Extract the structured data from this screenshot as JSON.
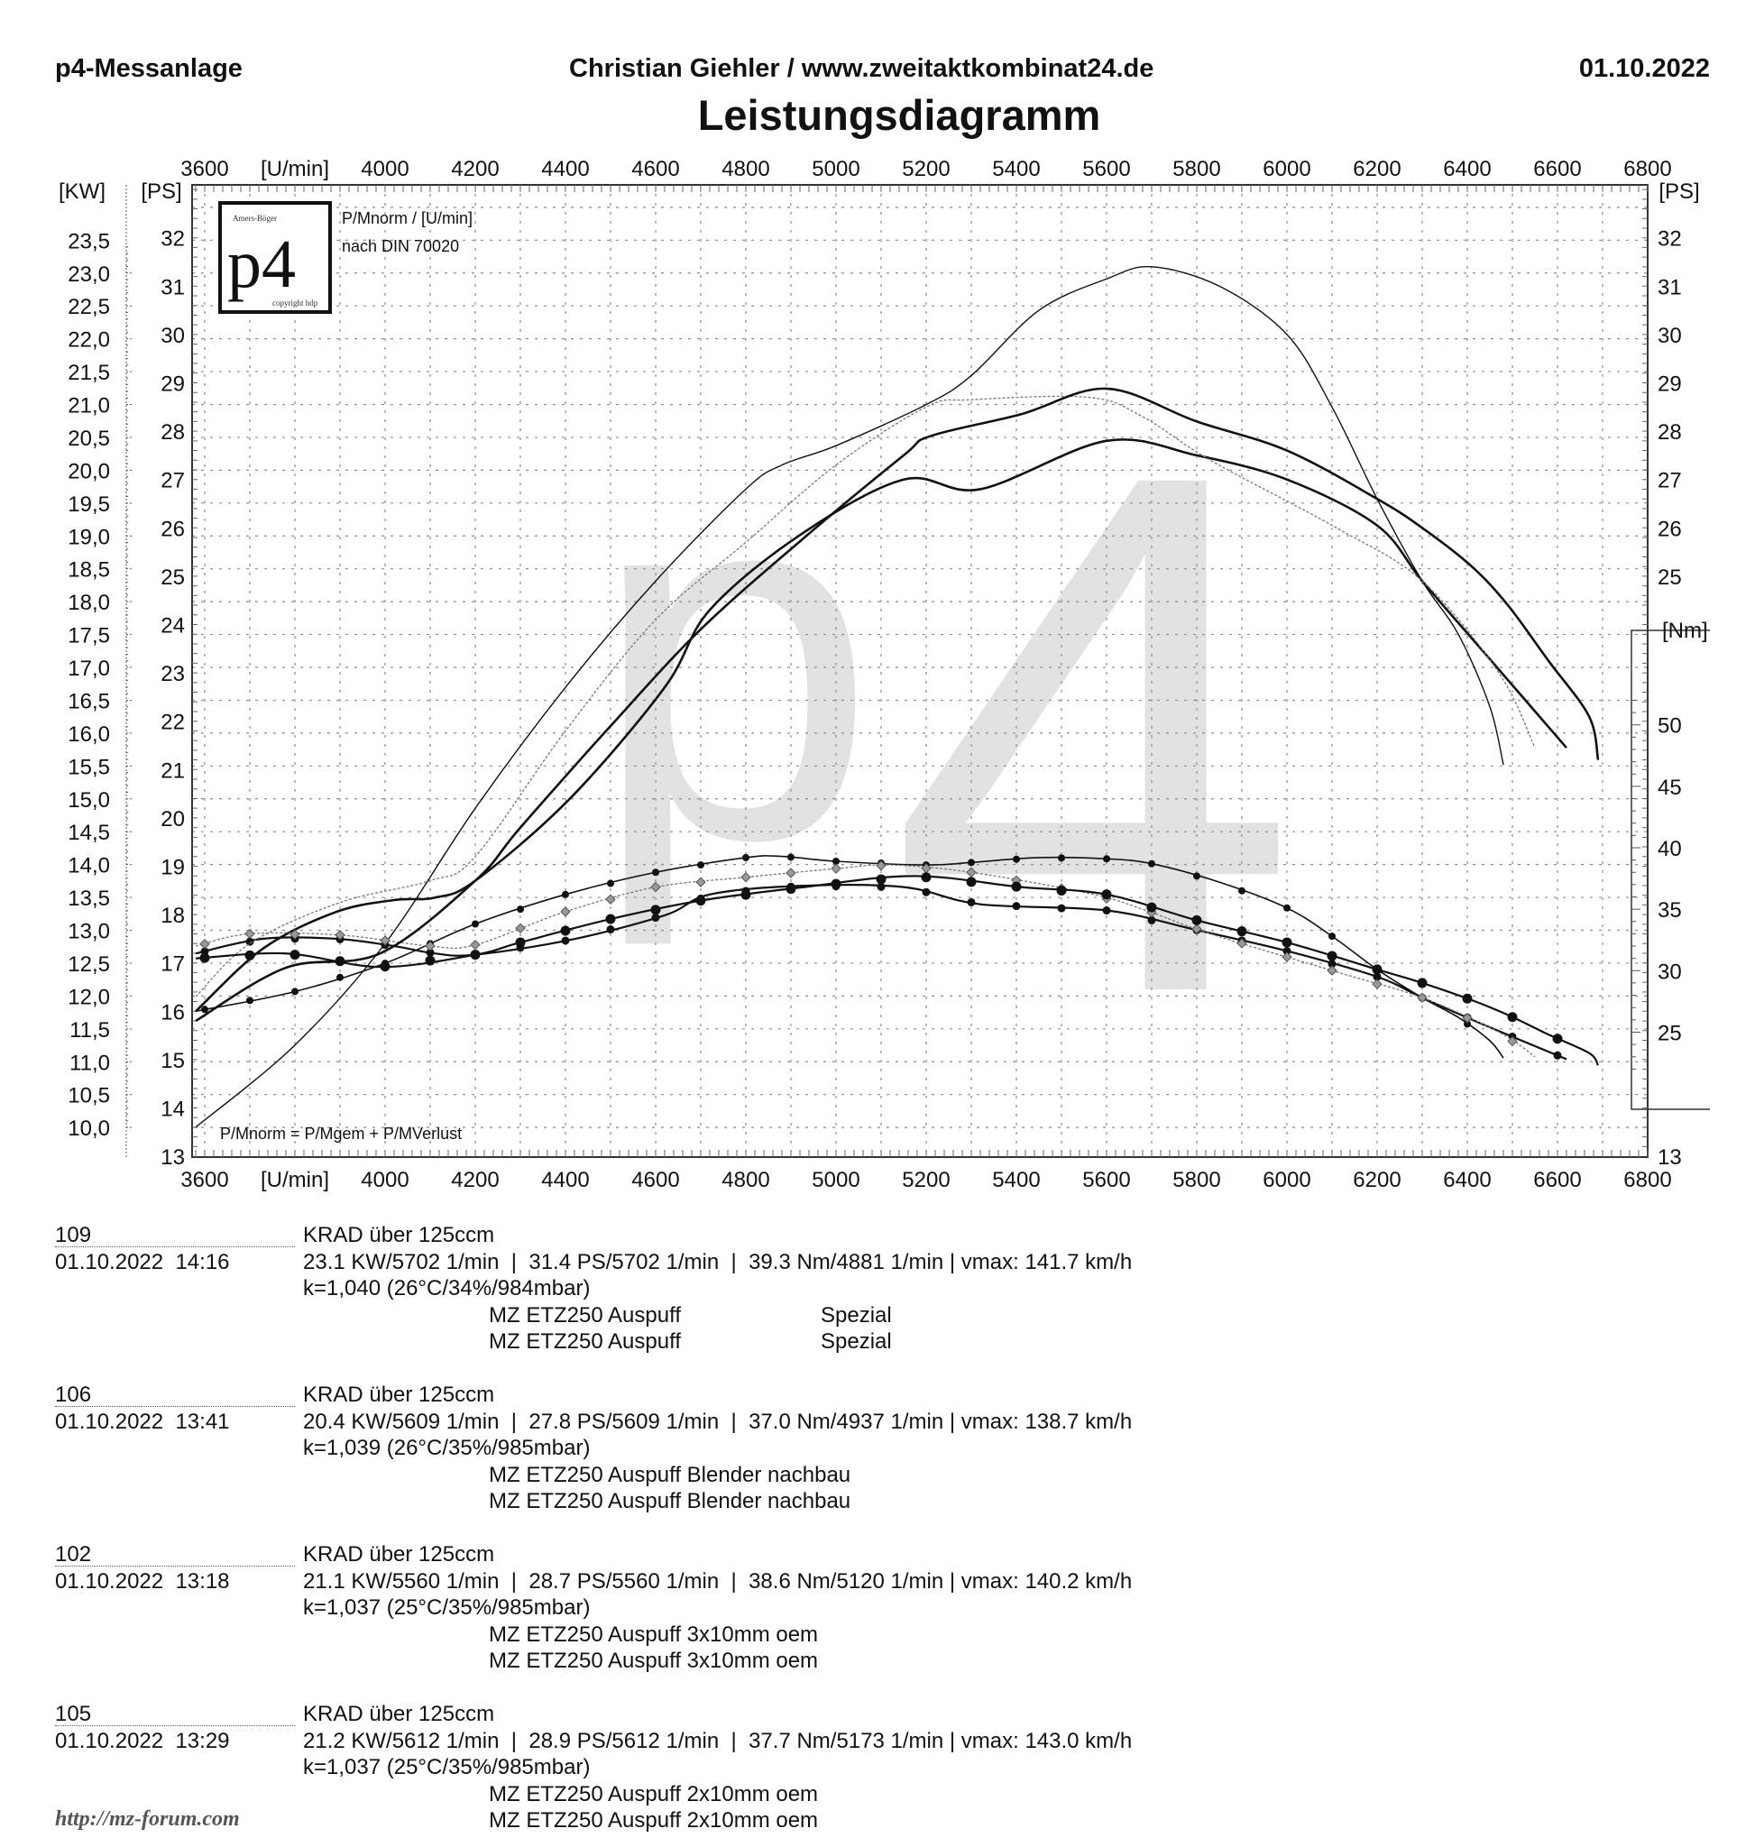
{
  "header": {
    "left": "p4-Messanlage",
    "center": "Christian Giehler / www.zweitaktkombinat24.de",
    "right": "01.10.2022",
    "title": "Leistungsdiagramm"
  },
  "logo": {
    "text": "p4",
    "top_text": "Amers-Böger",
    "bottom_text": "copyright hdp"
  },
  "watermark": "p4",
  "notes": {
    "unit_note": "P/Mnorm / [U/min]",
    "norm_note": "nach DIN 70020",
    "formula": "P/Mnorm = P/Mgem + P/MVerlust"
  },
  "chart_data": {
    "type": "line",
    "title": "Leistungsdiagramm",
    "xlabel": "[U/min]",
    "ylabel_left_kw": "[KW]",
    "ylabel_left_ps": "[PS]",
    "ylabel_right_ps": "[PS]",
    "ylabel_right_nm": "[Nm]",
    "xlim": [
      3572,
      6800
    ],
    "ylim_ps": [
      13,
      33.1
    ],
    "grid": true,
    "x_ticks": [
      3600,
      3800,
      4000,
      4200,
      4400,
      4600,
      4800,
      5000,
      5200,
      5400,
      5600,
      5800,
      6000,
      6200,
      6400,
      6600,
      6800
    ],
    "x_tick_labels": [
      "3600",
      "[U/min]",
      "4000",
      "4200",
      "4400",
      "4600",
      "4800",
      "5000",
      "5200",
      "5400",
      "5600",
      "5800",
      "6000",
      "6200",
      "6400",
      "6600",
      "6800"
    ],
    "ps_ticks": [
      "13",
      "14",
      "15",
      "16",
      "17",
      "18",
      "19",
      "20",
      "21",
      "22",
      "23",
      "24",
      "25",
      "26",
      "27",
      "28",
      "29",
      "30",
      "31",
      "32"
    ],
    "kw_ticks": [
      "10,0",
      "10,5",
      "11,0",
      "11,5",
      "12,0",
      "12,5",
      "13,0",
      "13,5",
      "14,0",
      "14,5",
      "15,0",
      "15,5",
      "16,0",
      "16,5",
      "17,0",
      "17,5",
      "18,0",
      "18,5",
      "19,0",
      "19,5",
      "20,0",
      "20,5",
      "21,0",
      "21,5",
      "22,0",
      "22,5",
      "23,0",
      "23,5"
    ],
    "nm_ticks": [
      "25",
      "30",
      "35",
      "40",
      "45",
      "50"
    ],
    "series": [
      {
        "name": "109",
        "line": "thin-solid",
        "marker": "small-dot",
        "color": "#111111",
        "power_ps": [
          [
            3580,
            13.6
          ],
          [
            3800,
            15.3
          ],
          [
            4000,
            17.4
          ],
          [
            4200,
            20.2
          ],
          [
            4400,
            22.7
          ],
          [
            4600,
            24.9
          ],
          [
            4800,
            26.8
          ],
          [
            4880,
            27.3
          ],
          [
            5000,
            27.7
          ],
          [
            5200,
            28.55
          ],
          [
            5300,
            29.15
          ],
          [
            5450,
            30.5
          ],
          [
            5600,
            31.15
          ],
          [
            5700,
            31.4
          ],
          [
            5850,
            31.0
          ],
          [
            6000,
            30.0
          ],
          [
            6100,
            28.5
          ],
          [
            6200,
            26.6
          ],
          [
            6300,
            24.9
          ],
          [
            6380,
            23.8
          ],
          [
            6450,
            22.3
          ],
          [
            6480,
            21.1
          ]
        ],
        "torque_nm": [
          [
            3580,
            26.7
          ],
          [
            3800,
            28.3
          ],
          [
            4000,
            30.6
          ],
          [
            4200,
            33.8
          ],
          [
            4400,
            36.2
          ],
          [
            4600,
            38.0
          ],
          [
            4800,
            39.2
          ],
          [
            4880,
            39.3
          ],
          [
            5000,
            38.9
          ],
          [
            5200,
            38.6
          ],
          [
            5300,
            38.8
          ],
          [
            5450,
            39.2
          ],
          [
            5600,
            39.1
          ],
          [
            5700,
            38.7
          ],
          [
            5850,
            37.2
          ],
          [
            6000,
            35.1
          ],
          [
            6100,
            32.8
          ],
          [
            6200,
            30.1
          ],
          [
            6300,
            27.8
          ],
          [
            6380,
            26.2
          ],
          [
            6450,
            24.3
          ],
          [
            6480,
            22.9
          ]
        ]
      },
      {
        "name": "106",
        "line": "thick-solid",
        "marker": "dot",
        "color": "#111111",
        "power_ps": [
          [
            3580,
            16.0
          ],
          [
            3730,
            17.3
          ],
          [
            3890,
            18.05
          ],
          [
            4020,
            18.3
          ],
          [
            4110,
            18.35
          ],
          [
            4200,
            18.7
          ],
          [
            4410,
            20.4
          ],
          [
            4620,
            22.7
          ],
          [
            4720,
            24.3
          ],
          [
            4920,
            25.85
          ],
          [
            5150,
            27.0
          ],
          [
            5320,
            26.8
          ],
          [
            5600,
            27.8
          ],
          [
            5800,
            27.5
          ],
          [
            6000,
            27.0
          ],
          [
            6200,
            26.05
          ],
          [
            6300,
            24.9
          ],
          [
            6430,
            23.5
          ],
          [
            6620,
            21.45
          ]
        ],
        "torque_nm": [
          [
            3580,
            31.4
          ],
          [
            3730,
            32.6
          ],
          [
            3890,
            32.6
          ],
          [
            4020,
            32.0
          ],
          [
            4110,
            31.4
          ],
          [
            4200,
            31.3
          ],
          [
            4410,
            32.5
          ],
          [
            4620,
            34.5
          ],
          [
            4720,
            36.2
          ],
          [
            4920,
            36.9
          ],
          [
            5150,
            36.8
          ],
          [
            5320,
            35.4
          ],
          [
            5600,
            34.9
          ],
          [
            5800,
            33.3
          ],
          [
            6000,
            31.6
          ],
          [
            6200,
            29.5
          ],
          [
            6300,
            27.8
          ],
          [
            6430,
            25.7
          ],
          [
            6620,
            22.8
          ]
        ]
      },
      {
        "name": "102",
        "line": "dotted",
        "marker": "diamond",
        "color": "#777777",
        "power_ps": [
          [
            3580,
            16.3
          ],
          [
            3700,
            17.4
          ],
          [
            3900,
            18.25
          ],
          [
            4100,
            18.7
          ],
          [
            4200,
            19.2
          ],
          [
            4400,
            21.8
          ],
          [
            4600,
            24.1
          ],
          [
            4800,
            25.7
          ],
          [
            5000,
            27.3
          ],
          [
            5200,
            28.5
          ],
          [
            5300,
            28.65
          ],
          [
            5560,
            28.7
          ],
          [
            5680,
            28.3
          ],
          [
            5830,
            27.4
          ],
          [
            6110,
            26.0
          ],
          [
            6300,
            24.9
          ],
          [
            6470,
            23.0
          ],
          [
            6550,
            21.45
          ]
        ],
        "torque_nm": [
          [
            3580,
            32.0
          ],
          [
            3700,
            33.0
          ],
          [
            3900,
            32.9
          ],
          [
            4100,
            32.0
          ],
          [
            4200,
            32.1
          ],
          [
            4400,
            34.8
          ],
          [
            4600,
            36.8
          ],
          [
            4800,
            37.6
          ],
          [
            5000,
            38.3
          ],
          [
            5120,
            38.6
          ],
          [
            5300,
            38.0
          ],
          [
            5560,
            36.3
          ],
          [
            5680,
            35.0
          ],
          [
            5830,
            33.0
          ],
          [
            6110,
            29.9
          ],
          [
            6300,
            27.8
          ],
          [
            6470,
            25.0
          ],
          [
            6550,
            23.0
          ]
        ]
      },
      {
        "name": "105",
        "line": "thick-solid",
        "marker": "large-dot",
        "color": "#111111",
        "power_ps": [
          [
            3580,
            15.8
          ],
          [
            3780,
            16.9
          ],
          [
            3990,
            17.2
          ],
          [
            4200,
            18.7
          ],
          [
            4300,
            19.8
          ],
          [
            4500,
            21.9
          ],
          [
            4700,
            23.9
          ],
          [
            4930,
            25.8
          ],
          [
            5150,
            27.5
          ],
          [
            5210,
            27.9
          ],
          [
            5410,
            28.35
          ],
          [
            5600,
            28.88
          ],
          [
            5800,
            28.2
          ],
          [
            6000,
            27.6
          ],
          [
            6200,
            26.6
          ],
          [
            6300,
            26.0
          ],
          [
            6410,
            25.2
          ],
          [
            6490,
            24.4
          ],
          [
            6580,
            23.25
          ],
          [
            6670,
            22.1
          ],
          [
            6690,
            21.2
          ]
        ],
        "torque_nm": [
          [
            3580,
            31.0
          ],
          [
            3780,
            31.4
          ],
          [
            3990,
            30.3
          ],
          [
            4200,
            31.3
          ],
          [
            4300,
            32.3
          ],
          [
            4500,
            34.2
          ],
          [
            4700,
            35.7
          ],
          [
            4930,
            36.8
          ],
          [
            5173,
            37.7
          ],
          [
            5410,
            36.8
          ],
          [
            5600,
            36.2
          ],
          [
            5800,
            34.1
          ],
          [
            6000,
            32.3
          ],
          [
            6200,
            30.1
          ],
          [
            6300,
            29.0
          ],
          [
            6410,
            27.6
          ],
          [
            6490,
            26.4
          ],
          [
            6580,
            24.8
          ],
          [
            6670,
            23.3
          ],
          [
            6690,
            22.3
          ]
        ]
      }
    ]
  },
  "runs": [
    {
      "id": "109",
      "vehicle": "KRAD über 125ccm",
      "datetime": "01.10.2022  14:16",
      "stats": "23.1 KW/5702 1/min  |  31.4 PS/5702 1/min  |  39.3 Nm/4881 1/min | vmax: 141.7 km/h",
      "conditions": "k=1,040 (26°C/34%/984mbar)",
      "desc1": "MZ ETZ250 Auspuff",
      "desc1_extra": "Spezial",
      "desc2": "MZ ETZ250 Auspuff",
      "desc2_extra": "Spezial"
    },
    {
      "id": "106",
      "vehicle": "KRAD über 125ccm",
      "datetime": "01.10.2022  13:41",
      "stats": "20.4 KW/5609 1/min  |  27.8 PS/5609 1/min  |  37.0 Nm/4937 1/min | vmax: 138.7 km/h",
      "conditions": "k=1,039 (26°C/35%/985mbar)",
      "desc1": "MZ ETZ250 Auspuff Blender nachbau",
      "desc2": "MZ ETZ250 Auspuff Blender nachbau"
    },
    {
      "id": "102",
      "vehicle": "KRAD über 125ccm",
      "datetime": "01.10.2022  13:18",
      "stats": "21.1 KW/5560 1/min  |  28.7 PS/5560 1/min  |  38.6 Nm/5120 1/min | vmax: 140.2 km/h",
      "conditions": "k=1,037 (25°C/35%/985mbar)",
      "desc1": "MZ ETZ250 Auspuff 3x10mm oem",
      "desc2": "MZ ETZ250 Auspuff 3x10mm oem"
    },
    {
      "id": "105",
      "vehicle": "KRAD über 125ccm",
      "datetime": "01.10.2022  13:29",
      "stats": "21.2 KW/5612 1/min  |  28.9 PS/5612 1/min  |  37.7 Nm/5173 1/min | vmax: 143.0 km/h",
      "conditions": "k=1,037 (25°C/35%/985mbar)",
      "desc1": "MZ ETZ250 Auspuff 2x10mm oem",
      "desc2": "MZ ETZ250 Auspuff 2x10mm oem"
    }
  ],
  "footer": "http://mz-forum.com"
}
